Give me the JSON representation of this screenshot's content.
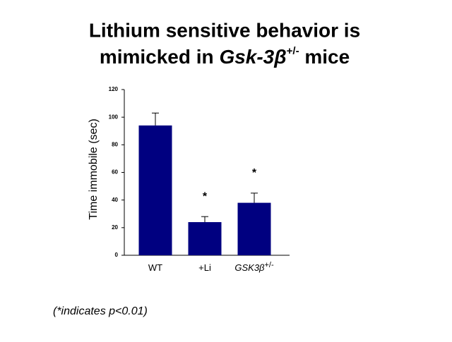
{
  "chart_data": {
    "type": "bar",
    "title_line1": "Lithium sensitive behavior is",
    "title_line2_start": "mimicked in",
    "title_gene": "Gsk-3β",
    "title_superscript": "+/-",
    "title_line2_end": "mice",
    "y_label": "Time immobile (sec)",
    "categories": [
      "WT",
      "+Li",
      "GSK3β"
    ],
    "category_superscripts": [
      null,
      null,
      "+/-"
    ],
    "values": [
      94,
      24,
      38
    ],
    "errors": [
      9,
      4,
      7
    ],
    "annotations": [
      null,
      "*",
      "*"
    ],
    "color": "#000080",
    "ylim": [
      0,
      120
    ],
    "yticks": [
      0,
      20,
      40,
      60,
      80,
      100,
      120
    ],
    "footnote": "(*indicates p<0.01)"
  }
}
